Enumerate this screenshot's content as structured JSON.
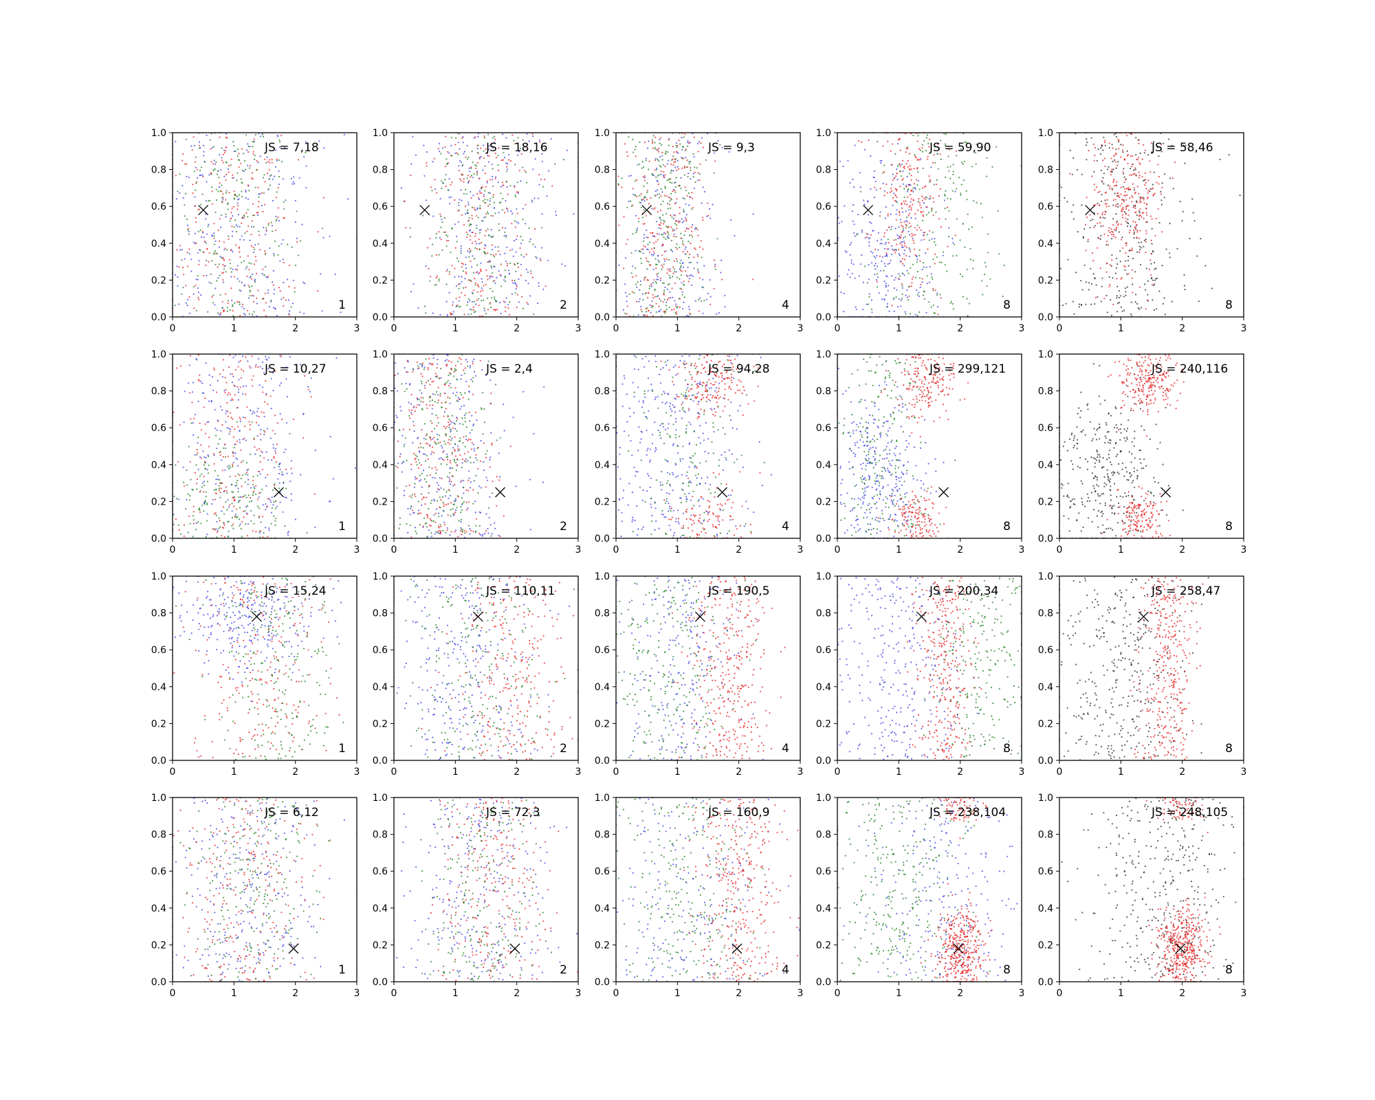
{
  "figure": {
    "rows": 4,
    "cols": 5,
    "xlim": [
      0,
      3
    ],
    "ylim": [
      0,
      1
    ],
    "xticks": [
      "0",
      "1",
      "2",
      "3"
    ],
    "yticks": [
      "0.0",
      "0.2",
      "0.4",
      "0.6",
      "0.8",
      "1.0"
    ],
    "colors": {
      "red": "#e41a1c",
      "green": "#1a7a1a",
      "blue": "#3a3ae0",
      "black": "#222222"
    },
    "grid": false
  },
  "chart_data": {
    "type": "scatter",
    "xlim": [
      0,
      3
    ],
    "ylim": [
      0,
      1
    ],
    "grid": false,
    "rows": [
      {
        "marker": [
          0.5,
          0.58
        ],
        "panels": [
          {
            "label": "1",
            "js": "JS = 7,18",
            "palette": "rgb"
          },
          {
            "label": "2",
            "js": "JS = 18,16",
            "palette": "rgb"
          },
          {
            "label": "4",
            "js": "JS = 9,3",
            "palette": "rgb"
          },
          {
            "label": "8",
            "js": "JS = 59,90",
            "palette": "rgb"
          },
          {
            "label": "8",
            "js": "JS = 58,46",
            "palette": "rk"
          }
        ]
      },
      {
        "marker": [
          1.73,
          0.25
        ],
        "panels": [
          {
            "label": "1",
            "js": "JS = 10,27",
            "palette": "rgb"
          },
          {
            "label": "2",
            "js": "JS = 2,4",
            "palette": "rgb"
          },
          {
            "label": "4",
            "js": "JS = 94,28",
            "palette": "rgb"
          },
          {
            "label": "8",
            "js": "JS = 299,121",
            "palette": "rgb"
          },
          {
            "label": "8",
            "js": "JS = 240,116",
            "palette": "rk"
          }
        ]
      },
      {
        "marker": [
          1.37,
          0.78
        ],
        "panels": [
          {
            "label": "1",
            "js": "JS = 15,24",
            "palette": "rgb"
          },
          {
            "label": "2",
            "js": "JS = 110,11",
            "palette": "rgb"
          },
          {
            "label": "4",
            "js": "JS = 190,5",
            "palette": "rgb"
          },
          {
            "label": "8",
            "js": "JS = 200,34",
            "palette": "rgb"
          },
          {
            "label": "8",
            "js": "JS = 258,47",
            "palette": "rk"
          }
        ]
      },
      {
        "marker": [
          1.97,
          0.18
        ],
        "panels": [
          {
            "label": "1",
            "js": "JS = 6,12",
            "palette": "rgb"
          },
          {
            "label": "2",
            "js": "JS = 72,3",
            "palette": "rgb"
          },
          {
            "label": "4",
            "js": "JS = 160,9",
            "palette": "rgb"
          },
          {
            "label": "8",
            "js": "JS = 238,104",
            "palette": "rgb"
          },
          {
            "label": "8",
            "js": "JS = 248,105",
            "palette": "rk"
          }
        ]
      }
    ]
  }
}
